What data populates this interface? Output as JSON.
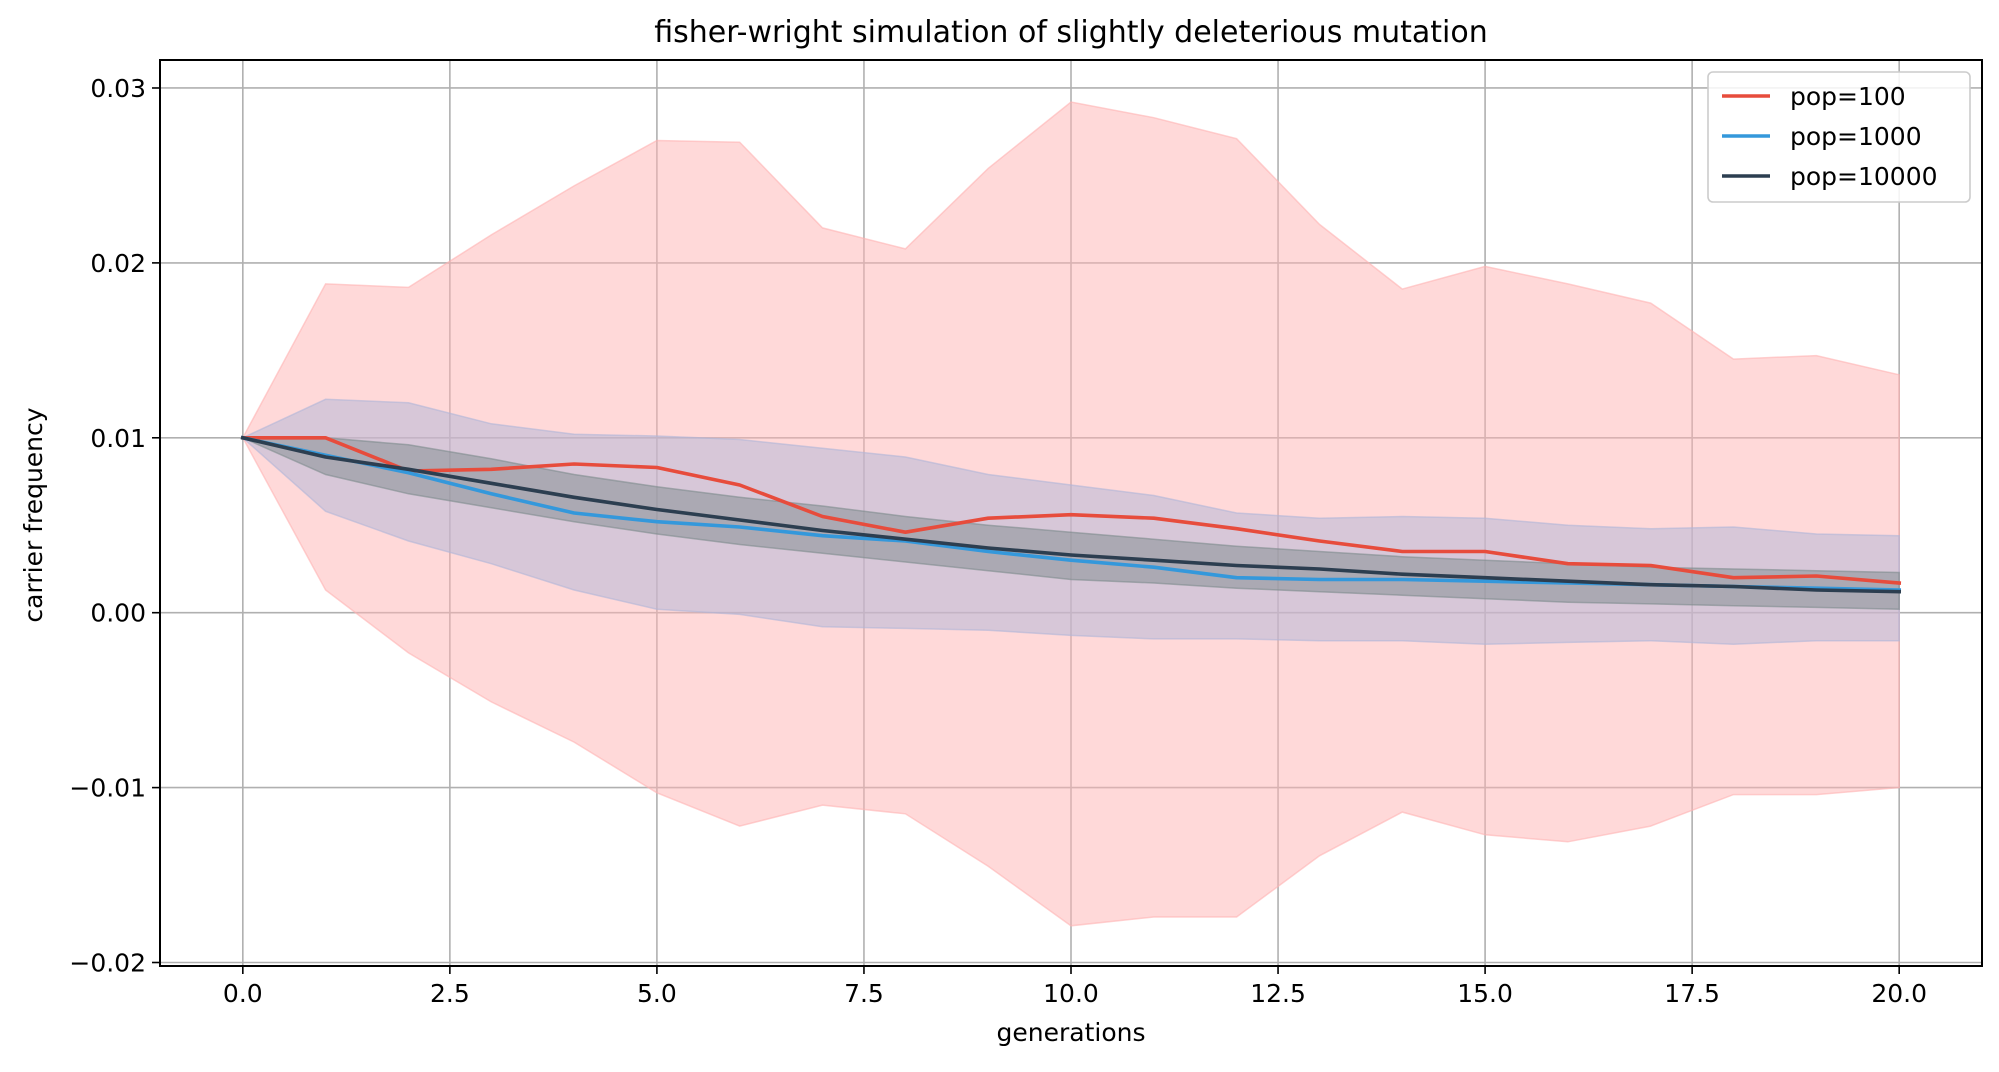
{
  "chart_data": {
    "type": "line",
    "title": "fisher-wright simulation of slightly deleterious mutation",
    "xlabel": "generations",
    "ylabel": "carrier frequency",
    "xlim": [
      -1,
      21
    ],
    "ylim": [
      -0.0202,
      0.0316
    ],
    "xticks": [
      0.0,
      2.5,
      5.0,
      7.5,
      10.0,
      12.5,
      15.0,
      17.5,
      20.0
    ],
    "xtick_labels": [
      "0.0",
      "2.5",
      "5.0",
      "7.5",
      "10.0",
      "12.5",
      "15.0",
      "17.5",
      "20.0"
    ],
    "yticks": [
      -0.02,
      -0.01,
      0.0,
      0.01,
      0.02,
      0.03
    ],
    "ytick_labels": [
      "−0.02",
      "−0.01",
      "0.00",
      "0.01",
      "0.02",
      "0.03"
    ],
    "grid": true,
    "legend_position": "top-right",
    "x": [
      0,
      1,
      2,
      3,
      4,
      5,
      6,
      7,
      8,
      9,
      10,
      11,
      12,
      13,
      14,
      15,
      16,
      17,
      18,
      19,
      20
    ],
    "series": [
      {
        "name": "pop=100",
        "color": "#e74c3c",
        "band_color": "#ffb3b3",
        "values": [
          0.01,
          0.01,
          0.0081,
          0.0082,
          0.0085,
          0.0083,
          0.0073,
          0.0055,
          0.0046,
          0.0054,
          0.0056,
          0.0054,
          0.0048,
          0.0041,
          0.0035,
          0.0035,
          0.0028,
          0.0027,
          0.002,
          0.0021,
          0.0017
        ],
        "upper": [
          0.01,
          0.0188,
          0.0186,
          0.0216,
          0.0244,
          0.027,
          0.0269,
          0.022,
          0.0208,
          0.0254,
          0.0292,
          0.0283,
          0.0271,
          0.0222,
          0.0185,
          0.0198,
          0.0188,
          0.0177,
          0.0145,
          0.0147,
          0.0136
        ],
        "lower": [
          0.01,
          0.0013,
          -0.0023,
          -0.0051,
          -0.0074,
          -0.0103,
          -0.0122,
          -0.011,
          -0.0115,
          -0.0145,
          -0.0179,
          -0.0174,
          -0.0174,
          -0.0139,
          -0.0114,
          -0.0127,
          -0.0131,
          -0.0122,
          -0.0104,
          -0.0104,
          -0.01
        ]
      },
      {
        "name": "pop=1000",
        "color": "#3498db",
        "band_color": "#b0b6d8",
        "values": [
          0.01,
          0.009,
          0.008,
          0.0068,
          0.0057,
          0.0052,
          0.0049,
          0.0044,
          0.0041,
          0.0035,
          0.003,
          0.0026,
          0.002,
          0.0019,
          0.0019,
          0.0018,
          0.0017,
          0.0016,
          0.0015,
          0.0014,
          0.0013
        ],
        "upper": [
          0.01,
          0.0122,
          0.012,
          0.0108,
          0.0102,
          0.0101,
          0.0099,
          0.0094,
          0.0089,
          0.0079,
          0.0073,
          0.0067,
          0.0057,
          0.0054,
          0.0055,
          0.0054,
          0.005,
          0.0048,
          0.0049,
          0.0045,
          0.0044
        ],
        "lower": [
          0.01,
          0.0058,
          0.0041,
          0.0028,
          0.0013,
          0.0002,
          -0.0001,
          -0.0008,
          -0.0009,
          -0.001,
          -0.0013,
          -0.0015,
          -0.0015,
          -0.0016,
          -0.0016,
          -0.0018,
          -0.0017,
          -0.0016,
          -0.0018,
          -0.0016,
          -0.0016
        ]
      },
      {
        "name": "pop=10000",
        "color": "#2c3e50",
        "band_color": "#7f8c8d",
        "values": [
          0.01,
          0.0089,
          0.0082,
          0.0074,
          0.0066,
          0.0059,
          0.0053,
          0.0047,
          0.0042,
          0.0037,
          0.0033,
          0.003,
          0.0027,
          0.0025,
          0.0022,
          0.002,
          0.0018,
          0.0016,
          0.0015,
          0.0013,
          0.0012
        ],
        "upper": [
          0.01,
          0.01,
          0.0096,
          0.0088,
          0.0079,
          0.0072,
          0.0066,
          0.0061,
          0.0055,
          0.005,
          0.0046,
          0.0042,
          0.0038,
          0.0035,
          0.0032,
          0.003,
          0.0028,
          0.0026,
          0.0025,
          0.0024,
          0.0023
        ],
        "lower": [
          0.01,
          0.0079,
          0.0068,
          0.006,
          0.0052,
          0.0045,
          0.0039,
          0.0034,
          0.0029,
          0.0024,
          0.0019,
          0.0017,
          0.0014,
          0.0012,
          0.001,
          0.0008,
          0.0006,
          0.0005,
          0.0004,
          0.0003,
          0.0002
        ]
      }
    ]
  }
}
